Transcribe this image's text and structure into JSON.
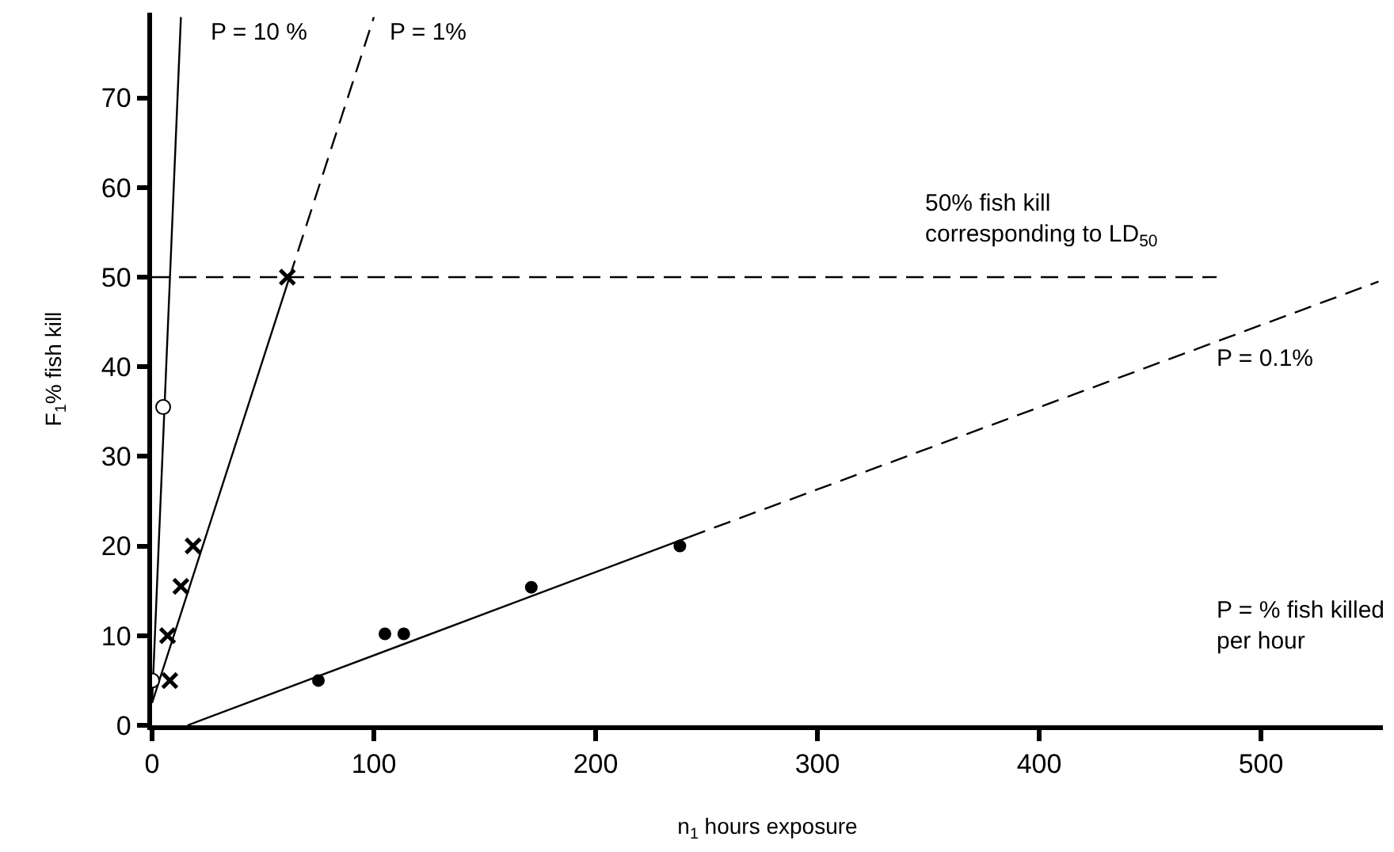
{
  "chart_data": {
    "type": "scatter",
    "xlabel": "n$_{1}$ hours exposure",
    "ylabel": "F$_{1}$% fish kill",
    "xlim": [
      0,
      555
    ],
    "ylim": [
      0,
      79.5
    ],
    "xticks": [
      0,
      100,
      200,
      300,
      400,
      500
    ],
    "yticks": [
      0,
      10,
      20,
      30,
      40,
      50,
      60,
      70
    ],
    "series": [
      {
        "type": "line",
        "color": "#000000",
        "line_style": "solid",
        "marker": "none",
        "x": [
          0,
          13
        ],
        "values": [
          2.5,
          79
        ]
      },
      {
        "type": "line",
        "color": "#000000",
        "line_style": "solid",
        "marker": "none",
        "x": [
          0,
          62
        ],
        "values": [
          2.5,
          50
        ]
      },
      {
        "type": "line",
        "color": "#000000",
        "line_style": "dashed",
        "marker": "none",
        "x": [
          62,
          100
        ],
        "values": [
          50,
          79
        ]
      },
      {
        "type": "line",
        "color": "#000000",
        "line_style": "solid",
        "marker": "none",
        "x": [
          16,
          242
        ],
        "values": [
          0,
          21
        ]
      },
      {
        "type": "line",
        "color": "#000000",
        "line_style": "dashed",
        "marker": "none",
        "x": [
          242,
          553
        ],
        "values": [
          21,
          49.5
        ]
      },
      {
        "type": "line",
        "color": "#000000",
        "line_style": "dashed",
        "marker": "none",
        "x": [
          0,
          480
        ],
        "values": [
          50,
          50
        ]
      },
      {
        "color": "#ffffff",
        "marker": "circle",
        "x": [
          0,
          5
        ],
        "values": [
          5,
          35.5
        ]
      },
      {
        "color": "#000000",
        "marker": "cross",
        "x": [
          8,
          7,
          13,
          18.5,
          61
        ],
        "values": [
          5,
          10,
          15.5,
          20,
          50
        ]
      },
      {
        "color": "#000000",
        "marker": "circle",
        "x": [
          75,
          105,
          113.5,
          171,
          238
        ],
        "values": [
          5,
          10.2,
          10.2,
          15.4,
          20
        ]
      }
    ],
    "annotations": [
      "P = 10 %",
      "P = 1%",
      "50% fish kill\ncorresponding to LD$_{50}$",
      "P = 0.1%",
      "P = % fish killed\nper hour"
    ]
  }
}
